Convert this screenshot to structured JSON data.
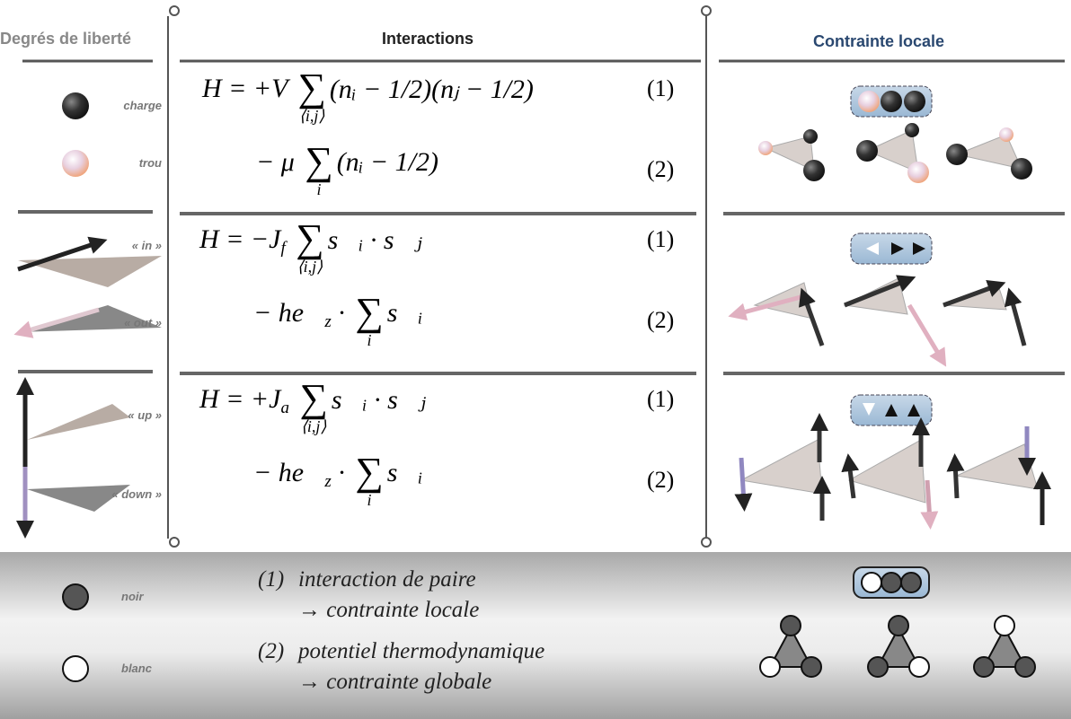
{
  "header": {
    "dof": "Degrés de liberté",
    "interactions": "Interactions",
    "constraint": "Contrainte locale"
  },
  "rows": [
    {
      "dof": [
        "charge",
        "trou"
      ],
      "equations": [
        {
          "parts": [
            {
              "text": "H = +V "
            },
            {
              "sum": "∑",
              "under": "⟨i,j⟩"
            },
            {
              "text": "(nᵢ − 1/2)(nⱼ − 1/2)"
            }
          ],
          "number": "(1)"
        },
        {
          "parts": [
            {
              "text": "− μ "
            },
            {
              "sum": "∑",
              "under": "i"
            },
            {
              "text": "(nᵢ − 1/2)"
            }
          ],
          "number": "(2)"
        }
      ]
    },
    {
      "dof": [
        "« in »",
        "« out »"
      ],
      "equations": [
        {
          "parts": [
            {
              "text": "H = −J"
            },
            {
              "sub": "f"
            },
            {
              "text": " "
            },
            {
              "sum": "∑",
              "under": "⟨i,j⟩"
            },
            {
              "text": "s⃗ᵢ · s⃗ⱼ"
            }
          ],
          "number": "(1)"
        },
        {
          "parts": [
            {
              "text": "− he⃗"
            },
            {
              "sub": "z"
            },
            {
              "text": " · "
            },
            {
              "sum": "∑",
              "under": "i"
            },
            {
              "text": "s⃗ᵢ"
            }
          ],
          "number": "(2)"
        }
      ]
    },
    {
      "dof": [
        "« up »",
        "« down »"
      ],
      "equations": [
        {
          "parts": [
            {
              "text": "H = +J"
            },
            {
              "sub": "a"
            },
            {
              "text": " "
            },
            {
              "sum": "∑",
              "under": "⟨i,j⟩"
            },
            {
              "text": "s⃗ᵢ · s⃗ⱼ"
            }
          ],
          "number": "(1)"
        },
        {
          "parts": [
            {
              "text": "− he⃗"
            },
            {
              "sub": "z"
            },
            {
              "text": " · "
            },
            {
              "sum": "∑",
              "under": "i"
            },
            {
              "text": "s⃗ᵢ"
            }
          ],
          "number": "(2)"
        }
      ]
    }
  ],
  "footer": {
    "dof": [
      "noir",
      "blanc"
    ],
    "notes": [
      {
        "number": "(1)",
        "lines": [
          "interaction de paire",
          "→ contrainte locale"
        ]
      },
      {
        "number": "(2)",
        "lines": [
          "potentiel thermodynamique",
          "→ contrainte globale"
        ]
      }
    ]
  }
}
